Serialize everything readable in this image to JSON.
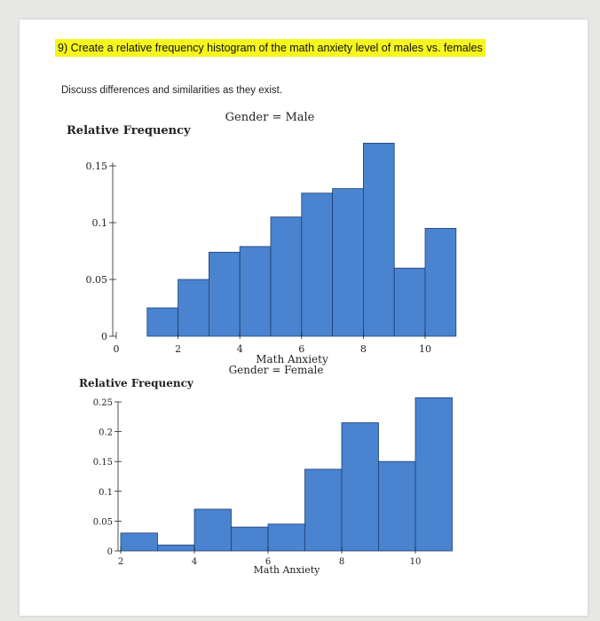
{
  "question": "9) Create a relative frequency histogram of the math anxiety level of males vs. females",
  "instructions": "Discuss differences and similarities as they exist.",
  "colors": {
    "bar_fill": "#4a83cf",
    "bar_stroke": "#1f3f73",
    "highlight": "#f6f51d"
  },
  "chart_data": [
    {
      "type": "bar",
      "title": "Gender = Male",
      "ylabel": "Relative Frequency",
      "xlabel": "Math Anxiety",
      "x_ticks": [
        0,
        2,
        4,
        6,
        8,
        10
      ],
      "y_ticks": [
        0,
        0.05,
        0.1,
        0.15
      ],
      "y_tick_labels": [
        "0",
        "0.05",
        "0.1",
        "0.15"
      ],
      "bin_edges": [
        1,
        2,
        3,
        4,
        5,
        6,
        7,
        8,
        9,
        10,
        11
      ],
      "values": [
        0.025,
        0.05,
        0.074,
        0.079,
        0.105,
        0.126,
        0.13,
        0.17,
        0.06,
        0.095
      ],
      "ylim": [
        0,
        0.17
      ],
      "xlim": [
        0,
        11
      ]
    },
    {
      "type": "bar",
      "title": "Gender = Female",
      "ylabel": "Relative Frequency",
      "xlabel": "Math Anxiety",
      "x_ticks": [
        2,
        4,
        6,
        8,
        10
      ],
      "y_ticks": [
        0,
        0.05,
        0.1,
        0.15,
        0.2,
        0.25
      ],
      "y_tick_labels": [
        "0",
        "0.05",
        "0.1",
        "0.15",
        "0.2",
        "0.25"
      ],
      "bin_edges": [
        2,
        3,
        4,
        5,
        6,
        7,
        8,
        9,
        10,
        11
      ],
      "values": [
        0.03,
        0.01,
        0.07,
        0.04,
        0.045,
        0.137,
        0.215,
        0.15,
        0.257
      ],
      "ylim": [
        0,
        0.25
      ],
      "xlim": [
        2,
        11
      ]
    }
  ]
}
